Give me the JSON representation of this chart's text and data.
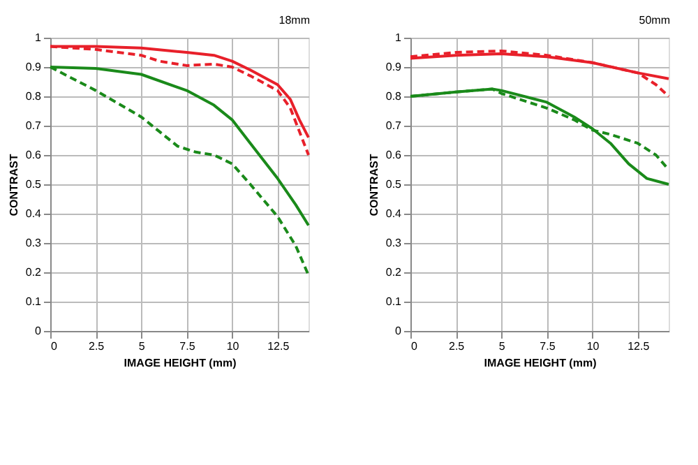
{
  "chart_data": [
    {
      "type": "line",
      "title": "18mm",
      "xlabel": "IMAGE HEIGHT (mm)",
      "ylabel": "CONTRAST",
      "xlim": [
        0,
        14.2
      ],
      "ylim": [
        0,
        1
      ],
      "xticks": [
        0,
        2.5,
        5,
        7.5,
        10,
        12.5
      ],
      "yticks": [
        0,
        0.1,
        0.2,
        0.3,
        0.4,
        0.5,
        0.6,
        0.7,
        0.8,
        0.9,
        1
      ],
      "grid": true,
      "marker": "none",
      "series": [
        {
          "color": "#e8202a",
          "line_style": "solid",
          "x": [
            0,
            2.5,
            5,
            7.5,
            9,
            10,
            11,
            12.5,
            13.2,
            13.7,
            14.2
          ],
          "values": [
            0.97,
            0.97,
            0.965,
            0.95,
            0.94,
            0.92,
            0.89,
            0.84,
            0.79,
            0.72,
            0.66
          ]
        },
        {
          "color": "#e8202a",
          "line_style": "dashed",
          "x": [
            0,
            2.5,
            5,
            6,
            7.5,
            9,
            10,
            11,
            12.5,
            13.2,
            13.7,
            14.2
          ],
          "values": [
            0.97,
            0.96,
            0.94,
            0.92,
            0.905,
            0.91,
            0.9,
            0.87,
            0.82,
            0.76,
            0.68,
            0.6
          ]
        },
        {
          "color": "#1a8a1a",
          "line_style": "solid",
          "x": [
            0,
            2.5,
            5,
            7.5,
            9,
            10,
            11,
            12.5,
            13.5,
            14.2
          ],
          "values": [
            0.9,
            0.895,
            0.875,
            0.82,
            0.77,
            0.72,
            0.64,
            0.52,
            0.43,
            0.36
          ]
        },
        {
          "color": "#1a8a1a",
          "line_style": "dashed",
          "x": [
            0,
            2.5,
            5,
            6,
            7,
            8,
            9,
            10,
            11,
            12.5,
            13.5,
            14.2
          ],
          "values": [
            0.9,
            0.82,
            0.73,
            0.68,
            0.63,
            0.61,
            0.6,
            0.57,
            0.5,
            0.39,
            0.29,
            0.19
          ]
        }
      ]
    },
    {
      "type": "line",
      "title": "50mm",
      "xlabel": "IMAGE HEIGHT (mm)",
      "ylabel": "CONTRAST",
      "xlim": [
        0,
        14.2
      ],
      "ylim": [
        0,
        1
      ],
      "xticks": [
        0,
        2.5,
        5,
        7.5,
        10,
        12.5
      ],
      "yticks": [
        0,
        0.1,
        0.2,
        0.3,
        0.4,
        0.5,
        0.6,
        0.7,
        0.8,
        0.9,
        1
      ],
      "grid": true,
      "marker": "none",
      "series": [
        {
          "color": "#e8202a",
          "line_style": "solid",
          "x": [
            0,
            2.5,
            5,
            7.5,
            10,
            12.5,
            14.2
          ],
          "values": [
            0.93,
            0.94,
            0.945,
            0.935,
            0.915,
            0.88,
            0.86
          ]
        },
        {
          "color": "#e8202a",
          "line_style": "dashed",
          "x": [
            0,
            2.5,
            5,
            7.5,
            10,
            12.5,
            13.5,
            14.2
          ],
          "values": [
            0.935,
            0.95,
            0.955,
            0.94,
            0.915,
            0.88,
            0.84,
            0.8
          ]
        },
        {
          "color": "#1a8a1a",
          "line_style": "solid",
          "x": [
            0,
            2.5,
            4.5,
            5,
            7.5,
            9,
            10,
            11,
            12,
            13,
            14.2
          ],
          "values": [
            0.8,
            0.815,
            0.825,
            0.82,
            0.78,
            0.73,
            0.69,
            0.64,
            0.57,
            0.52,
            0.5
          ]
        },
        {
          "color": "#1a8a1a",
          "line_style": "dashed",
          "x": [
            0,
            2.5,
            4.5,
            5,
            7.5,
            9,
            10,
            11,
            12.5,
            13.5,
            14.2
          ],
          "values": [
            0.8,
            0.815,
            0.825,
            0.81,
            0.76,
            0.72,
            0.685,
            0.67,
            0.64,
            0.6,
            0.55
          ]
        }
      ]
    }
  ]
}
